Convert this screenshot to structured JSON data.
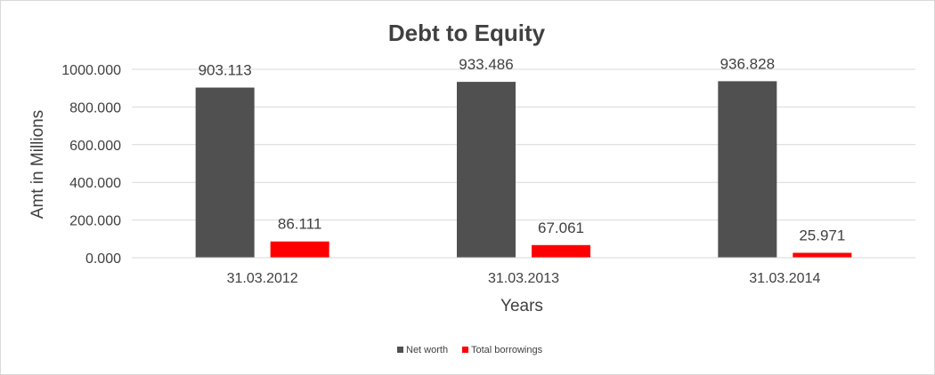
{
  "chart_data": {
    "type": "bar",
    "title": "Debt to Equity",
    "xlabel": "Years",
    "ylabel": "Amt in Millions",
    "categories": [
      "31.03.2012",
      "31.03.2013",
      "31.03.2014"
    ],
    "series": [
      {
        "name": "Net worth",
        "color": "#505050",
        "values": [
          903.113,
          933.486,
          936.828
        ],
        "labels": [
          "903.113",
          "933.486",
          "936.828"
        ]
      },
      {
        "name": "Total borrowings",
        "color": "#ff0000",
        "values": [
          86.111,
          67.061,
          25.971
        ],
        "labels": [
          "86.111",
          "67.061",
          "25.971"
        ]
      }
    ],
    "ylim": [
      0,
      1000
    ],
    "yticks": [
      0,
      200,
      400,
      600,
      800,
      1000
    ],
    "ytick_labels": [
      "0.000",
      "200.000",
      "400.000",
      "600.000",
      "800.000",
      "1000.000"
    ],
    "grid": true,
    "legend_position": "bottom"
  }
}
